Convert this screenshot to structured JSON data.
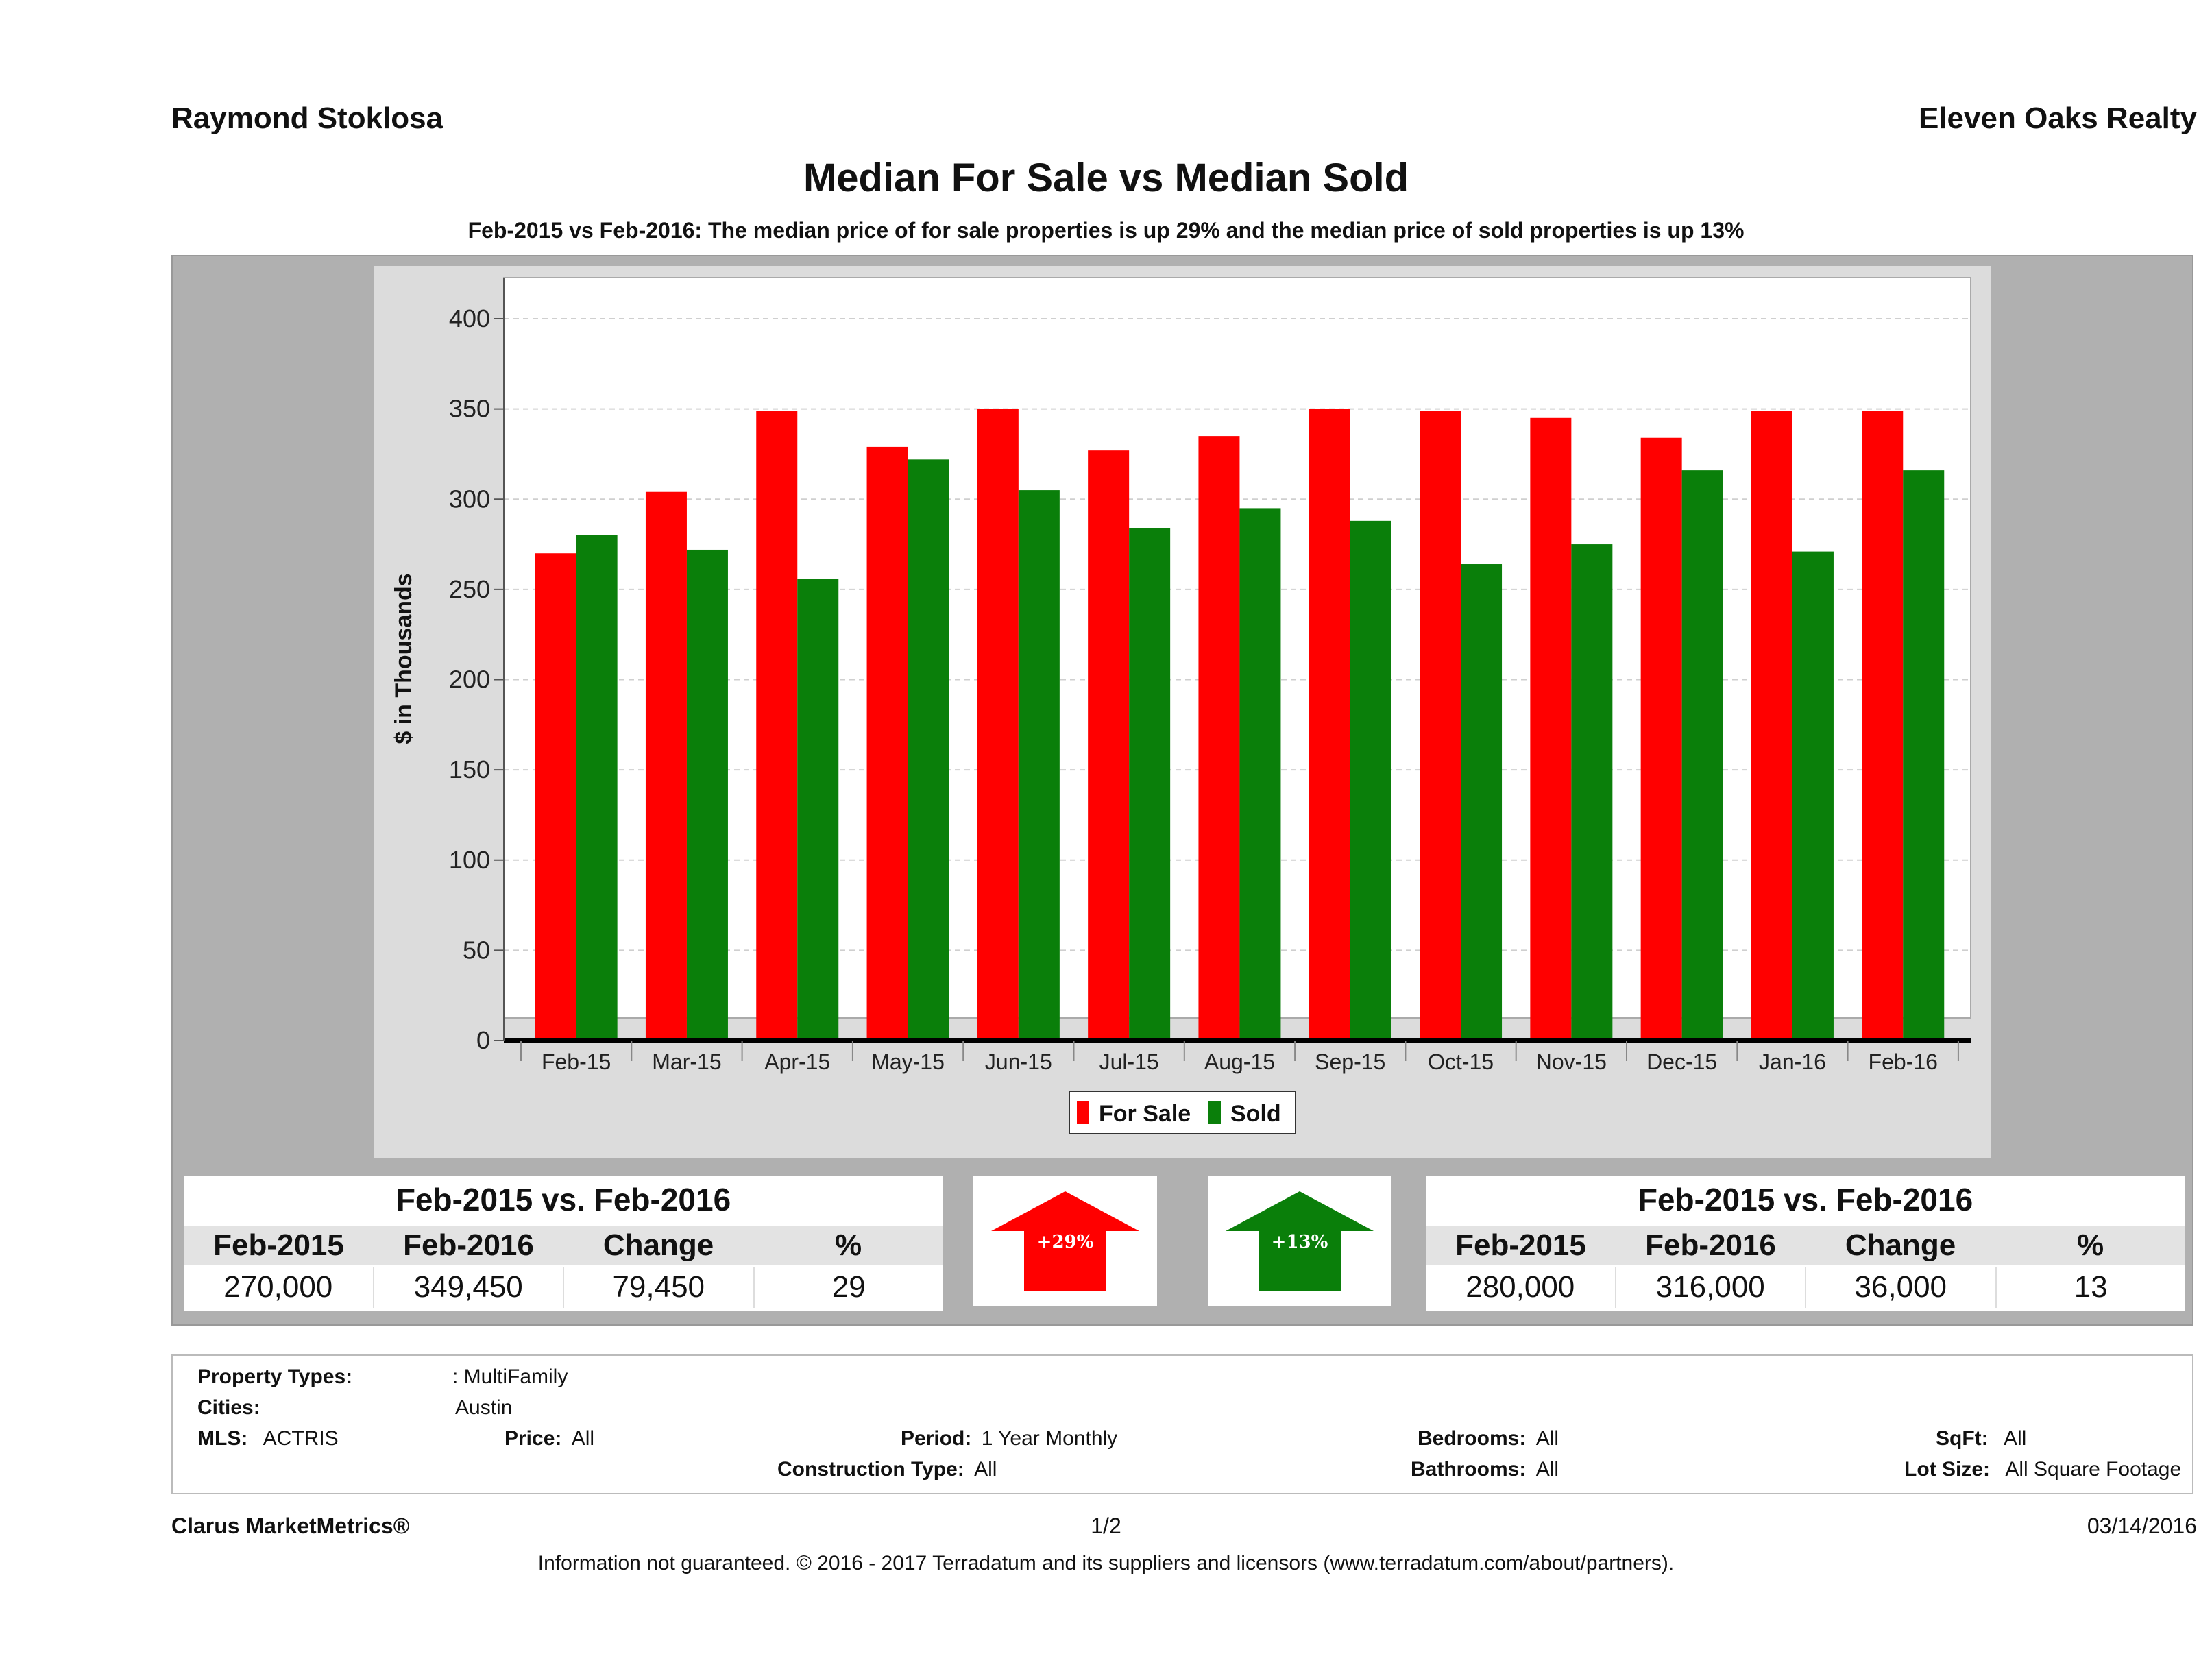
{
  "header": {
    "agent": "Raymond Stoklosa",
    "company": "Eleven Oaks Realty"
  },
  "title": "Median For Sale vs Median Sold",
  "subtitle": "Feb-2015 vs Feb-2016: The median price of for sale properties is up 29% and the median price of sold properties is up 13%",
  "colors": {
    "for_sale": "#ff0000",
    "sold": "#0a7f0a",
    "panel": "#b0b0b0",
    "plot_bg": "#ffffff"
  },
  "chart_data": {
    "type": "bar",
    "ylabel": "$ in Thousands",
    "xlabel": "",
    "ylim": [
      0,
      400
    ],
    "yticks": [
      0,
      50,
      100,
      150,
      200,
      250,
      300,
      350,
      400
    ],
    "grid": true,
    "legend_position": "bottom",
    "categories": [
      "Feb-15",
      "Mar-15",
      "Apr-15",
      "May-15",
      "Jun-15",
      "Jul-15",
      "Aug-15",
      "Sep-15",
      "Oct-15",
      "Nov-15",
      "Dec-15",
      "Jan-16",
      "Feb-16"
    ],
    "series": [
      {
        "name": "For Sale",
        "color": "#ff0000",
        "values": [
          270,
          304,
          349,
          329,
          350,
          327,
          335,
          350,
          349,
          345,
          334,
          349,
          349
        ]
      },
      {
        "name": "Sold",
        "color": "#0a7f0a",
        "values": [
          280,
          272,
          256,
          322,
          305,
          284,
          295,
          288,
          264,
          275,
          316,
          271,
          316
        ]
      }
    ]
  },
  "summary_for_sale": {
    "title": "Feb-2015 vs. Feb-2016",
    "headers": [
      "Feb-2015",
      "Feb-2016",
      "Change",
      "%"
    ],
    "values": [
      "270,000",
      "349,450",
      "79,450",
      "29"
    ],
    "arrow_label": "+29%"
  },
  "summary_sold": {
    "title": "Feb-2015 vs. Feb-2016",
    "headers": [
      "Feb-2015",
      "Feb-2016",
      "Change",
      "%"
    ],
    "values": [
      "280,000",
      "316,000",
      "36,000",
      "13"
    ],
    "arrow_label": "+13%"
  },
  "filters": {
    "property_types_label": "Property Types:",
    "property_types_value": ": MultiFamily",
    "cities_label": "Cities:",
    "cities_value": "Austin",
    "mls_label": "MLS:",
    "mls_value": "ACTRIS",
    "price_label": "Price:",
    "price_value": "All",
    "period_label": "Period:",
    "period_value": "1 Year Monthly",
    "bedrooms_label": "Bedrooms:",
    "bedrooms_value": "All",
    "sqft_label": "SqFt:",
    "sqft_value": "All",
    "construction_label": "Construction Type:",
    "construction_value": "All",
    "bathrooms_label": "Bathrooms:",
    "bathrooms_value": "All",
    "lotsize_label": "Lot Size:",
    "lotsize_value": "All Square Footage"
  },
  "footer": {
    "brand": "Clarus MarketMetrics®",
    "page": "1/2",
    "date": "03/14/2016",
    "disclaimer": "Information not guaranteed. © 2016 - 2017 Terradatum and its suppliers and licensors (www.terradatum.com/about/partners)."
  }
}
